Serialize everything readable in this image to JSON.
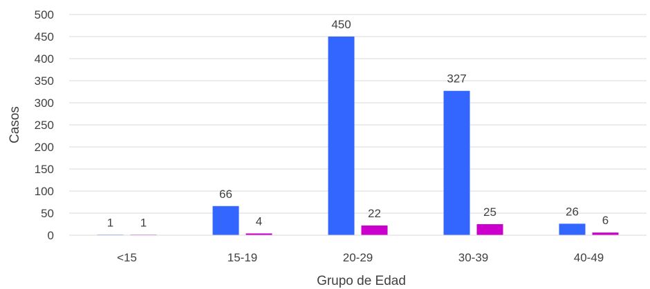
{
  "chart_data": {
    "type": "bar",
    "xlabel": "Grupo de Edad",
    "ylabel": "Casos",
    "ylim": [
      0,
      500
    ],
    "ytick_step": 50,
    "grid": true,
    "categories": [
      "<15",
      "15-19",
      "20-29",
      "30-39",
      "40-49"
    ],
    "series": [
      {
        "values": [
          1,
          66,
          450,
          327,
          26
        ],
        "color": "#3366ff"
      },
      {
        "values": [
          1,
          4,
          22,
          25,
          6
        ],
        "color": "#cc00cc"
      }
    ]
  }
}
